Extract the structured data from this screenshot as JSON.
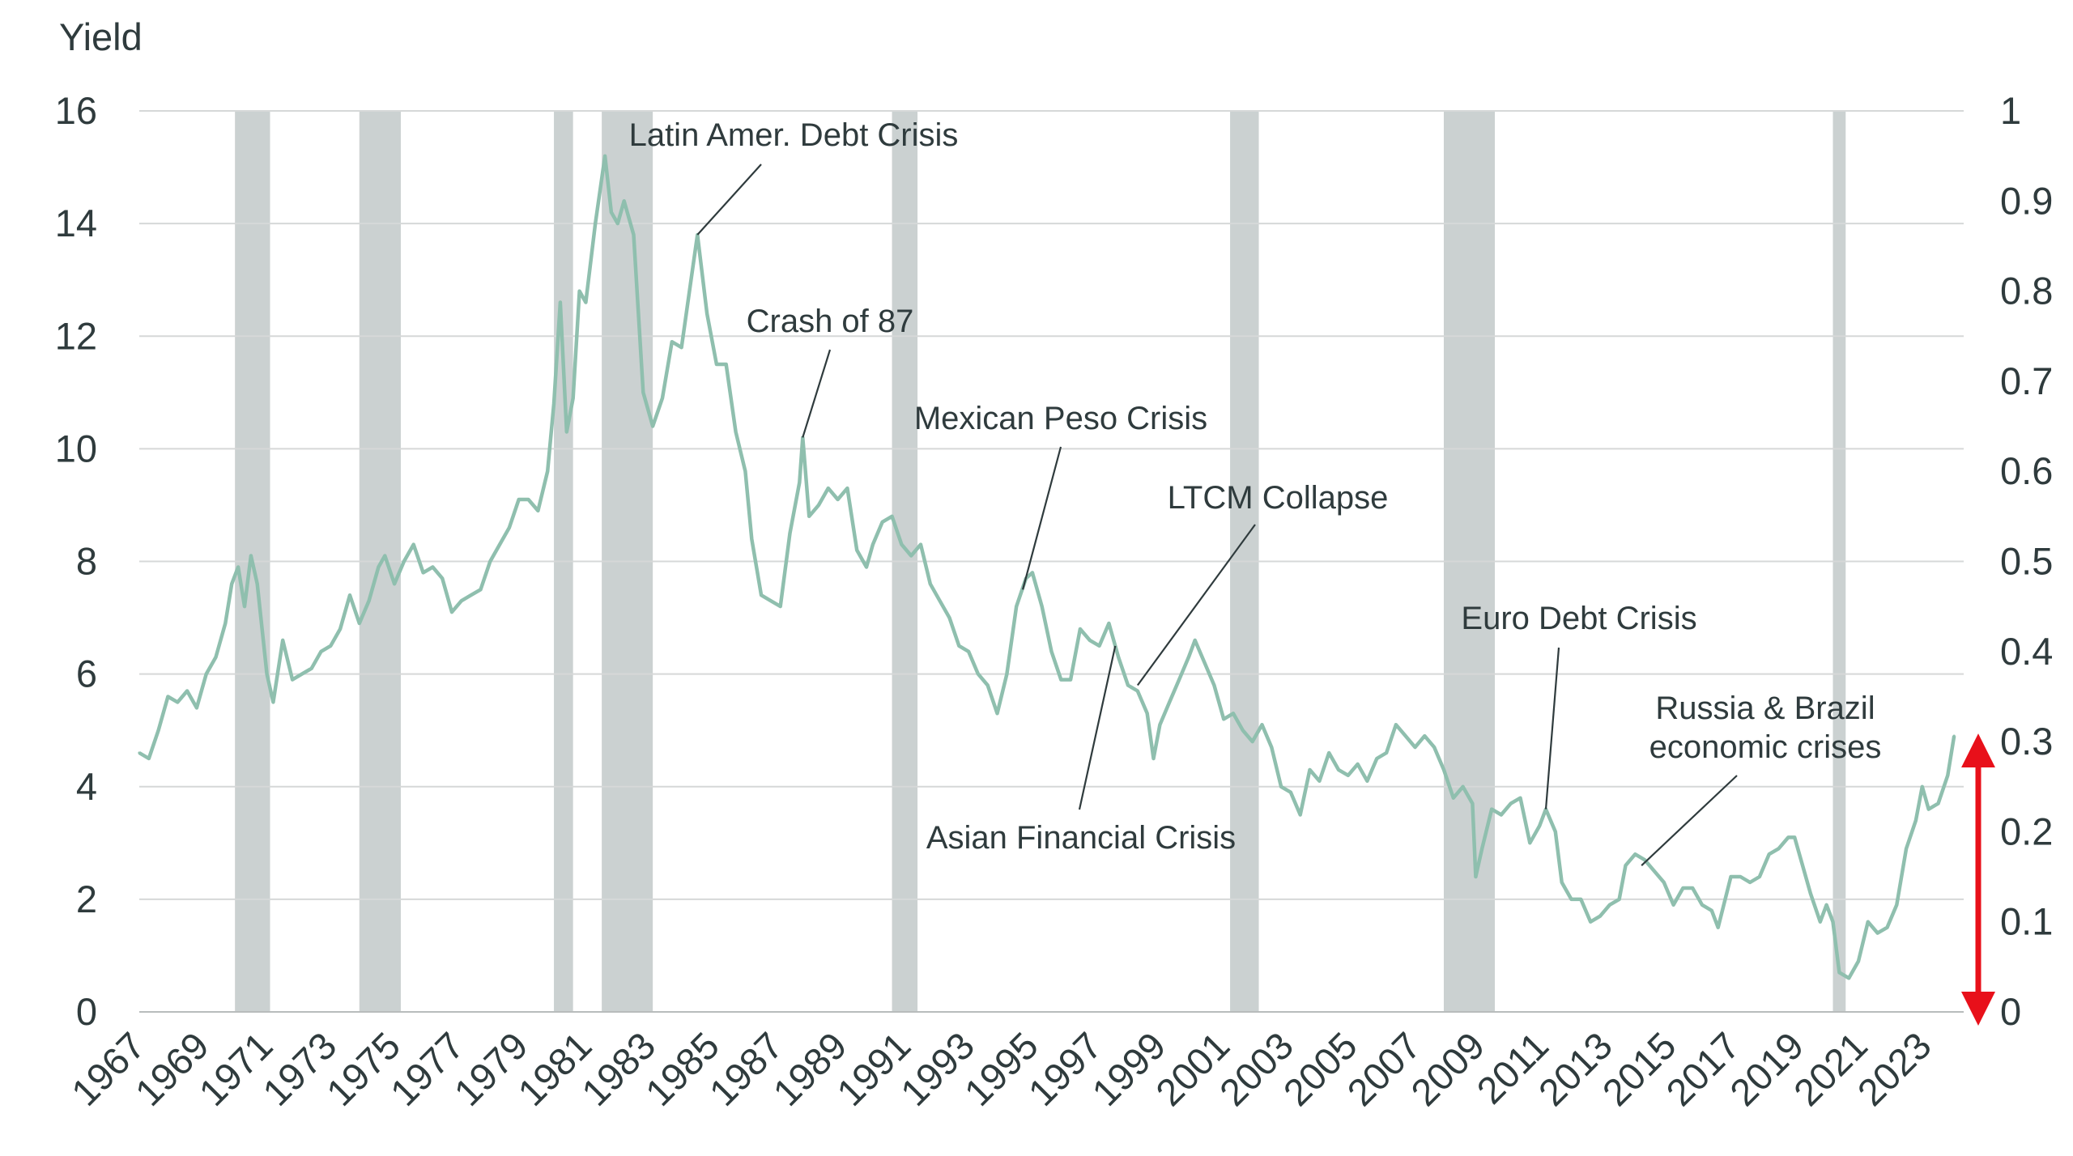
{
  "colors": {
    "line": "#8fbfae",
    "recession": "#cbd1d1",
    "grid": "#d6d8d8",
    "text": "#2f3b3d",
    "arrow": "#e8101a",
    "leader": "#2f3b3d"
  },
  "chart_data": {
    "type": "line",
    "ylabel": "Yield",
    "ylim": [
      0,
      16
    ],
    "yticks": [
      "0",
      "2",
      "4",
      "6",
      "8",
      "10",
      "12",
      "14",
      "16"
    ],
    "y2lim": [
      0,
      1
    ],
    "y2ticks": [
      "0",
      "0.1",
      "0.2",
      "0.3",
      "0.4",
      "0.5",
      "0.6",
      "0.7",
      "0.8",
      "0.9",
      "1"
    ],
    "xlim": [
      1967,
      2024.2
    ],
    "xticks": [
      "1967",
      "1969",
      "1971",
      "1973",
      "1975",
      "1977",
      "1979",
      "1981",
      "1983",
      "1985",
      "1987",
      "1989",
      "1991",
      "1993",
      "1995",
      "1997",
      "1999",
      "2001",
      "2003",
      "2005",
      "2007",
      "2009",
      "2011",
      "2013",
      "2015",
      "2017",
      "2019",
      "2021",
      "2023"
    ],
    "recessions": [
      [
        1970.0,
        1971.1
      ],
      [
        1973.9,
        1975.2
      ],
      [
        1980.0,
        1980.6
      ],
      [
        1981.5,
        1983.1
      ],
      [
        1990.6,
        1991.4
      ],
      [
        2001.2,
        2002.1
      ],
      [
        2007.9,
        2009.5
      ],
      [
        2020.1,
        2020.5
      ]
    ],
    "series": [
      {
        "name": "Yield",
        "points": [
          [
            1967.0,
            4.6
          ],
          [
            1967.3,
            4.5
          ],
          [
            1967.6,
            5.0
          ],
          [
            1967.9,
            5.6
          ],
          [
            1968.2,
            5.5
          ],
          [
            1968.5,
            5.7
          ],
          [
            1968.8,
            5.4
          ],
          [
            1969.1,
            6.0
          ],
          [
            1969.4,
            6.3
          ],
          [
            1969.7,
            6.9
          ],
          [
            1969.9,
            7.6
          ],
          [
            1970.1,
            7.9
          ],
          [
            1970.3,
            7.2
          ],
          [
            1970.5,
            8.1
          ],
          [
            1970.7,
            7.6
          ],
          [
            1971.0,
            6.0
          ],
          [
            1971.2,
            5.5
          ],
          [
            1971.5,
            6.6
          ],
          [
            1971.8,
            5.9
          ],
          [
            1972.1,
            6.0
          ],
          [
            1972.4,
            6.1
          ],
          [
            1972.7,
            6.4
          ],
          [
            1973.0,
            6.5
          ],
          [
            1973.3,
            6.8
          ],
          [
            1973.6,
            7.4
          ],
          [
            1973.9,
            6.9
          ],
          [
            1974.2,
            7.3
          ],
          [
            1974.5,
            7.9
          ],
          [
            1974.7,
            8.1
          ],
          [
            1975.0,
            7.6
          ],
          [
            1975.3,
            8.0
          ],
          [
            1975.6,
            8.3
          ],
          [
            1975.9,
            7.8
          ],
          [
            1976.2,
            7.9
          ],
          [
            1976.5,
            7.7
          ],
          [
            1976.8,
            7.1
          ],
          [
            1977.1,
            7.3
          ],
          [
            1977.4,
            7.4
          ],
          [
            1977.7,
            7.5
          ],
          [
            1978.0,
            8.0
          ],
          [
            1978.3,
            8.3
          ],
          [
            1978.6,
            8.6
          ],
          [
            1978.9,
            9.1
          ],
          [
            1979.2,
            9.1
          ],
          [
            1979.5,
            8.9
          ],
          [
            1979.8,
            9.6
          ],
          [
            1980.0,
            10.8
          ],
          [
            1980.2,
            12.6
          ],
          [
            1980.4,
            10.3
          ],
          [
            1980.6,
            10.9
          ],
          [
            1980.8,
            12.8
          ],
          [
            1981.0,
            12.6
          ],
          [
            1981.3,
            14.0
          ],
          [
            1981.6,
            15.2
          ],
          [
            1981.8,
            14.2
          ],
          [
            1982.0,
            14.0
          ],
          [
            1982.2,
            14.4
          ],
          [
            1982.5,
            13.8
          ],
          [
            1982.8,
            11.0
          ],
          [
            1983.1,
            10.4
          ],
          [
            1983.4,
            10.9
          ],
          [
            1983.7,
            11.9
          ],
          [
            1984.0,
            11.8
          ],
          [
            1984.3,
            13.0
          ],
          [
            1984.5,
            13.8
          ],
          [
            1984.8,
            12.4
          ],
          [
            1985.1,
            11.5
          ],
          [
            1985.4,
            11.5
          ],
          [
            1985.7,
            10.3
          ],
          [
            1986.0,
            9.6
          ],
          [
            1986.2,
            8.4
          ],
          [
            1986.5,
            7.4
          ],
          [
            1986.8,
            7.3
          ],
          [
            1987.1,
            7.2
          ],
          [
            1987.4,
            8.5
          ],
          [
            1987.7,
            9.4
          ],
          [
            1987.8,
            10.2
          ],
          [
            1988.0,
            8.8
          ],
          [
            1988.3,
            9.0
          ],
          [
            1988.6,
            9.3
          ],
          [
            1988.9,
            9.1
          ],
          [
            1989.2,
            9.3
          ],
          [
            1989.5,
            8.2
          ],
          [
            1989.8,
            7.9
          ],
          [
            1990.0,
            8.3
          ],
          [
            1990.3,
            8.7
          ],
          [
            1990.6,
            8.8
          ],
          [
            1990.9,
            8.3
          ],
          [
            1991.2,
            8.1
          ],
          [
            1991.5,
            8.3
          ],
          [
            1991.8,
            7.6
          ],
          [
            1992.1,
            7.3
          ],
          [
            1992.4,
            7.0
          ],
          [
            1992.7,
            6.5
          ],
          [
            1993.0,
            6.4
          ],
          [
            1993.3,
            6.0
          ],
          [
            1993.6,
            5.8
          ],
          [
            1993.9,
            5.3
          ],
          [
            1994.2,
            6.0
          ],
          [
            1994.5,
            7.2
          ],
          [
            1994.8,
            7.7
          ],
          [
            1995.0,
            7.8
          ],
          [
            1995.3,
            7.2
          ],
          [
            1995.6,
            6.4
          ],
          [
            1995.9,
            5.9
          ],
          [
            1996.2,
            5.9
          ],
          [
            1996.5,
            6.8
          ],
          [
            1996.8,
            6.6
          ],
          [
            1997.1,
            6.5
          ],
          [
            1997.4,
            6.9
          ],
          [
            1997.7,
            6.3
          ],
          [
            1998.0,
            5.8
          ],
          [
            1998.3,
            5.7
          ],
          [
            1998.6,
            5.3
          ],
          [
            1998.8,
            4.5
          ],
          [
            1999.0,
            5.1
          ],
          [
            1999.3,
            5.5
          ],
          [
            1999.6,
            5.9
          ],
          [
            1999.9,
            6.3
          ],
          [
            2000.1,
            6.6
          ],
          [
            2000.4,
            6.2
          ],
          [
            2000.7,
            5.8
          ],
          [
            2001.0,
            5.2
          ],
          [
            2001.3,
            5.3
          ],
          [
            2001.6,
            5.0
          ],
          [
            2001.9,
            4.8
          ],
          [
            2002.2,
            5.1
          ],
          [
            2002.5,
            4.7
          ],
          [
            2002.8,
            4.0
          ],
          [
            2003.1,
            3.9
          ],
          [
            2003.4,
            3.5
          ],
          [
            2003.7,
            4.3
          ],
          [
            2004.0,
            4.1
          ],
          [
            2004.3,
            4.6
          ],
          [
            2004.6,
            4.3
          ],
          [
            2004.9,
            4.2
          ],
          [
            2005.2,
            4.4
          ],
          [
            2005.5,
            4.1
          ],
          [
            2005.8,
            4.5
          ],
          [
            2006.1,
            4.6
          ],
          [
            2006.4,
            5.1
          ],
          [
            2006.7,
            4.9
          ],
          [
            2007.0,
            4.7
          ],
          [
            2007.3,
            4.9
          ],
          [
            2007.6,
            4.7
          ],
          [
            2007.9,
            4.3
          ],
          [
            2008.2,
            3.8
          ],
          [
            2008.5,
            4.0
          ],
          [
            2008.8,
            3.7
          ],
          [
            2008.9,
            2.4
          ],
          [
            2009.1,
            2.9
          ],
          [
            2009.4,
            3.6
          ],
          [
            2009.7,
            3.5
          ],
          [
            2010.0,
            3.7
          ],
          [
            2010.3,
            3.8
          ],
          [
            2010.6,
            3.0
          ],
          [
            2010.9,
            3.3
          ],
          [
            2011.1,
            3.6
          ],
          [
            2011.4,
            3.2
          ],
          [
            2011.6,
            2.3
          ],
          [
            2011.9,
            2.0
          ],
          [
            2012.2,
            2.0
          ],
          [
            2012.5,
            1.6
          ],
          [
            2012.8,
            1.7
          ],
          [
            2013.1,
            1.9
          ],
          [
            2013.4,
            2.0
          ],
          [
            2013.6,
            2.6
          ],
          [
            2013.9,
            2.8
          ],
          [
            2014.2,
            2.7
          ],
          [
            2014.5,
            2.5
          ],
          [
            2014.8,
            2.3
          ],
          [
            2015.1,
            1.9
          ],
          [
            2015.4,
            2.2
          ],
          [
            2015.7,
            2.2
          ],
          [
            2016.0,
            1.9
          ],
          [
            2016.3,
            1.8
          ],
          [
            2016.5,
            1.5
          ],
          [
            2016.9,
            2.4
          ],
          [
            2017.2,
            2.4
          ],
          [
            2017.5,
            2.3
          ],
          [
            2017.8,
            2.4
          ],
          [
            2018.1,
            2.8
          ],
          [
            2018.4,
            2.9
          ],
          [
            2018.7,
            3.1
          ],
          [
            2018.9,
            3.1
          ],
          [
            2019.1,
            2.7
          ],
          [
            2019.4,
            2.1
          ],
          [
            2019.7,
            1.6
          ],
          [
            2019.9,
            1.9
          ],
          [
            2020.1,
            1.6
          ],
          [
            2020.3,
            0.7
          ],
          [
            2020.6,
            0.6
          ],
          [
            2020.9,
            0.9
          ],
          [
            2021.2,
            1.6
          ],
          [
            2021.5,
            1.4
          ],
          [
            2021.8,
            1.5
          ],
          [
            2022.1,
            1.9
          ],
          [
            2022.4,
            2.9
          ],
          [
            2022.7,
            3.4
          ],
          [
            2022.9,
            4.0
          ],
          [
            2023.1,
            3.6
          ],
          [
            2023.4,
            3.7
          ],
          [
            2023.7,
            4.2
          ],
          [
            2023.9,
            4.9
          ]
        ]
      }
    ],
    "annotations": [
      {
        "id": "latam",
        "text": "Latin Amer. Debt Crisis",
        "lines": [
          "Latin Amer. Debt Crisis"
        ],
        "point": [
          1984.5,
          13.8
        ]
      },
      {
        "id": "crash87",
        "text": "Crash of 87",
        "lines": [
          "Crash of 87"
        ],
        "point": [
          1987.8,
          10.2
        ]
      },
      {
        "id": "peso",
        "text": "Mexican Peso Crisis",
        "lines": [
          "Mexican Peso Crisis"
        ],
        "point": [
          1994.7,
          7.5
        ]
      },
      {
        "id": "ltcm",
        "text": "LTCM Collapse",
        "lines": [
          "LTCM Collapse"
        ],
        "point": [
          1998.3,
          5.8
        ]
      },
      {
        "id": "asian",
        "text": "Asian Financial Crisis",
        "lines": [
          "Asian Financial Crisis"
        ],
        "point": [
          1997.6,
          6.5
        ]
      },
      {
        "id": "euro",
        "text": "Euro Debt Crisis",
        "lines": [
          "Euro Debt Crisis"
        ],
        "point": [
          2011.1,
          3.6
        ]
      },
      {
        "id": "russia",
        "text": "Russia & Brazil economic crises",
        "lines": [
          "Russia & Brazil",
          "economic crises"
        ],
        "point": [
          2014.1,
          2.6
        ]
      }
    ]
  }
}
